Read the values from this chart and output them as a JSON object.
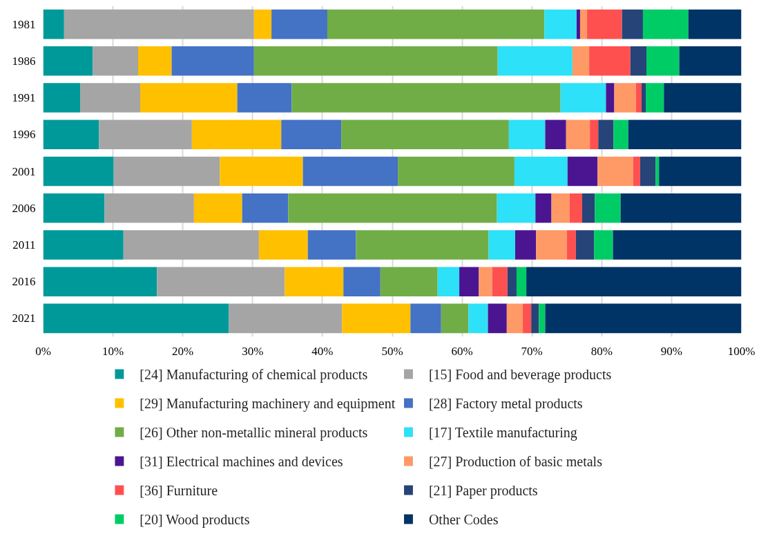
{
  "chart_data": {
    "type": "bar",
    "orientation": "horizontal",
    "stacked": true,
    "categories": [
      "1981",
      "1986",
      "1991",
      "1996",
      "2001",
      "2006",
      "2011",
      "2016",
      "2021"
    ],
    "xlim": [
      0,
      100
    ],
    "xticks": [
      {
        "value": 0,
        "label": "0%"
      },
      {
        "value": 10,
        "label": "10%"
      },
      {
        "value": 20,
        "label": "20%"
      },
      {
        "value": 30,
        "label": "30%"
      },
      {
        "value": 40,
        "label": "40%"
      },
      {
        "value": 50,
        "label": "50%"
      },
      {
        "value": 60,
        "label": "60%"
      },
      {
        "value": 70,
        "label": "70%"
      },
      {
        "value": 80,
        "label": "80%"
      },
      {
        "value": 90,
        "label": "90%"
      },
      {
        "value": 100,
        "label": "100%"
      }
    ],
    "grid": "x",
    "legend": "bottom",
    "series": [
      {
        "name": "[24] Manufacturing of chemical products",
        "color": "#009999",
        "values": [
          3.0,
          7.1,
          5.3,
          8.0,
          10.1,
          8.8,
          11.5,
          16.3,
          26.6
        ]
      },
      {
        "name": "[15] Food and beverage products",
        "color": "#a5a5a5",
        "values": [
          27.2,
          6.5,
          8.6,
          13.3,
          15.2,
          12.8,
          19.4,
          18.3,
          16.2
        ]
      },
      {
        "name": "[29] Manufacturing machinery and equipment",
        "color": "#ffc000",
        "values": [
          2.5,
          4.8,
          13.9,
          12.8,
          11.9,
          6.9,
          7.0,
          8.4,
          9.8
        ]
      },
      {
        "name": "[28] Factory metal products",
        "color": "#4472c4",
        "values": [
          8.0,
          11.8,
          7.8,
          8.6,
          13.6,
          6.6,
          6.9,
          5.3,
          4.4
        ]
      },
      {
        "name": "[26] Other non-metallic mineral products",
        "color": "#70ad47",
        "values": [
          31.1,
          34.9,
          38.5,
          24.0,
          16.7,
          29.9,
          19.0,
          8.2,
          3.9
        ]
      },
      {
        "name": "[17] Textile manufacturing",
        "color": "#2ce1f8",
        "values": [
          4.6,
          10.7,
          6.5,
          5.2,
          7.6,
          5.5,
          3.8,
          3.1,
          2.8
        ]
      },
      {
        "name": "[31] Electrical machines and devices",
        "color": "#4b1591",
        "values": [
          0.5,
          0.0,
          1.2,
          3.0,
          4.3,
          2.3,
          3.0,
          2.8,
          2.7
        ]
      },
      {
        "name": "[27] Production of basic metals",
        "color": "#ff9966",
        "values": [
          1.0,
          2.4,
          3.1,
          3.4,
          5.1,
          2.6,
          4.4,
          1.9,
          2.3
        ]
      },
      {
        "name": "[36] Furniture",
        "color": "#ff5050",
        "values": [
          5.0,
          5.9,
          0.8,
          1.2,
          1.0,
          1.8,
          1.3,
          2.2,
          1.2
        ]
      },
      {
        "name": "[21] Paper products",
        "color": "#264478",
        "values": [
          3.0,
          2.3,
          0.6,
          2.2,
          2.2,
          1.8,
          2.6,
          1.3,
          1.1
        ]
      },
      {
        "name": "[20] Wood products",
        "color": "#00cc66",
        "values": [
          6.5,
          4.7,
          2.6,
          2.1,
          0.5,
          3.7,
          2.7,
          1.4,
          0.9
        ]
      },
      {
        "name": "Other Codes",
        "color": "#003366",
        "values": [
          7.6,
          8.9,
          11.1,
          16.2,
          11.8,
          17.3,
          18.4,
          30.8,
          28.1
        ]
      }
    ]
  }
}
